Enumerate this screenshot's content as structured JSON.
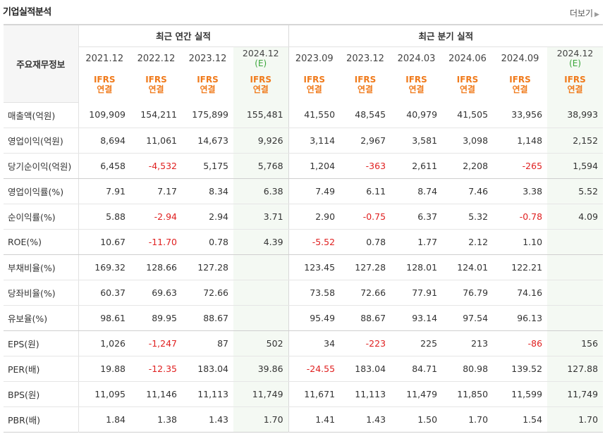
{
  "header": {
    "title": "기업실적분석",
    "more_label": "더보기"
  },
  "table": {
    "corner_label": "주요재무정보",
    "group_annual": "최근 연간 실적",
    "group_quarter": "최근 분기 실적",
    "columns": [
      {
        "period": "2021.12",
        "est": "",
        "std1": "IFRS",
        "std2": "연결"
      },
      {
        "period": "2022.12",
        "est": "",
        "std1": "IFRS",
        "std2": "연결"
      },
      {
        "period": "2023.12",
        "est": "",
        "std1": "IFRS",
        "std2": "연결"
      },
      {
        "period": "2024.12",
        "est": "(E)",
        "std1": "IFRS",
        "std2": "연결"
      },
      {
        "period": "2023.09",
        "est": "",
        "std1": "IFRS",
        "std2": "연결"
      },
      {
        "period": "2023.12",
        "est": "",
        "std1": "IFRS",
        "std2": "연결"
      },
      {
        "period": "2024.03",
        "est": "",
        "std1": "IFRS",
        "std2": "연결"
      },
      {
        "period": "2024.06",
        "est": "",
        "std1": "IFRS",
        "std2": "연결"
      },
      {
        "period": "2024.09",
        "est": "",
        "std1": "IFRS",
        "std2": "연결"
      },
      {
        "period": "2024.12",
        "est": "(E)",
        "std1": "IFRS",
        "std2": "연결"
      }
    ],
    "rows": [
      {
        "label": "매출액(억원)",
        "values": [
          "109,909",
          "154,211",
          "175,899",
          "155,481",
          "41,550",
          "48,545",
          "40,979",
          "41,505",
          "33,956",
          "38,993"
        ]
      },
      {
        "label": "영업이익(억원)",
        "values": [
          "8,694",
          "11,061",
          "14,673",
          "9,926",
          "3,114",
          "2,967",
          "3,581",
          "3,098",
          "1,148",
          "2,152"
        ]
      },
      {
        "label": "당기순이익(억원)",
        "values": [
          "6,458",
          "-4,532",
          "5,175",
          "5,768",
          "1,204",
          "-363",
          "2,611",
          "2,208",
          "-265",
          "1,594"
        ]
      },
      {
        "label": "영업이익률(%)",
        "values": [
          "7.91",
          "7.17",
          "8.34",
          "6.38",
          "7.49",
          "6.11",
          "8.74",
          "7.46",
          "3.38",
          "5.52"
        ]
      },
      {
        "label": "순이익률(%)",
        "values": [
          "5.88",
          "-2.94",
          "2.94",
          "3.71",
          "2.90",
          "-0.75",
          "6.37",
          "5.32",
          "-0.78",
          "4.09"
        ]
      },
      {
        "label": "ROE(%)",
        "values": [
          "10.67",
          "-11.70",
          "0.78",
          "4.39",
          "-5.52",
          "0.78",
          "1.77",
          "2.12",
          "1.10",
          ""
        ]
      },
      {
        "label": "부채비율(%)",
        "values": [
          "169.32",
          "128.66",
          "127.28",
          "",
          "123.45",
          "127.28",
          "128.01",
          "124.01",
          "122.21",
          ""
        ]
      },
      {
        "label": "당좌비율(%)",
        "values": [
          "60.37",
          "69.63",
          "72.66",
          "",
          "73.58",
          "72.66",
          "77.91",
          "76.79",
          "74.16",
          ""
        ]
      },
      {
        "label": "유보율(%)",
        "values": [
          "98.61",
          "89.95",
          "88.67",
          "",
          "95.49",
          "88.67",
          "93.14",
          "97.54",
          "96.13",
          ""
        ]
      },
      {
        "label": "EPS(원)",
        "values": [
          "1,026",
          "-1,247",
          "87",
          "502",
          "34",
          "-223",
          "225",
          "213",
          "-86",
          "156"
        ]
      },
      {
        "label": "PER(배)",
        "values": [
          "19.88",
          "-12.35",
          "183.04",
          "39.86",
          "-24.55",
          "183.04",
          "84.71",
          "80.98",
          "139.52",
          "127.88"
        ]
      },
      {
        "label": "BPS(원)",
        "values": [
          "11,095",
          "11,146",
          "11,113",
          "11,749",
          "11,671",
          "11,113",
          "11,479",
          "11,850",
          "11,599",
          "11,749"
        ]
      },
      {
        "label": "PBR(배)",
        "values": [
          "1.84",
          "1.38",
          "1.43",
          "1.70",
          "1.41",
          "1.43",
          "1.50",
          "1.70",
          "1.54",
          "1.70"
        ]
      }
    ]
  },
  "colors": {
    "negative": "#e02020",
    "ifrs": "#f07a1b",
    "estimate": "#3aa63a",
    "estimate_bg": "#f4f9f3"
  }
}
